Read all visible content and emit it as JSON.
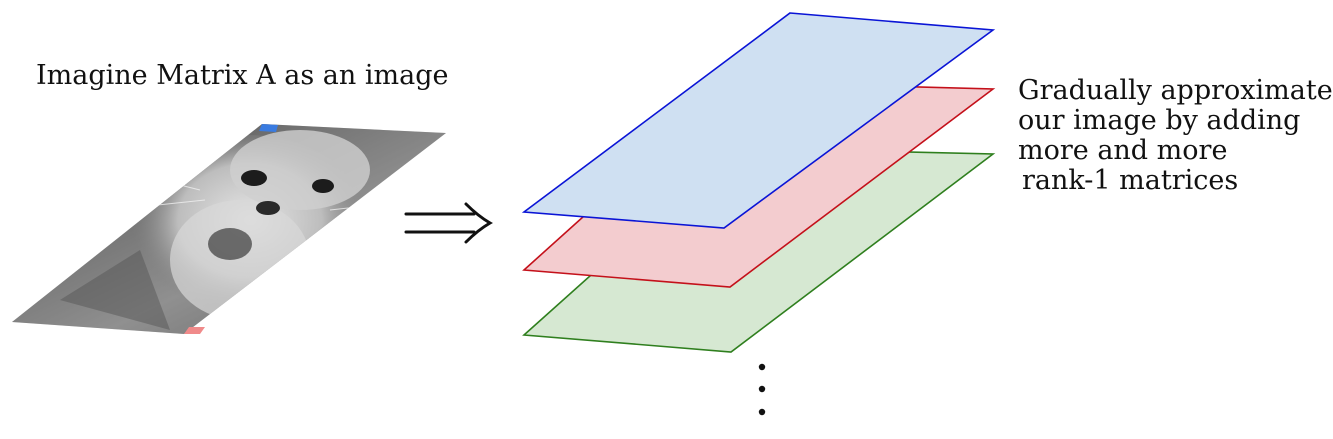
{
  "left_caption": "Imagine Matrix A as an image",
  "right_caption_lines": [
    "Gradually approximate",
    "our image by adding",
    "more and more",
    "rank-1 matrices"
  ],
  "image_subject": "cat-photo-grayscale",
  "arrow_symbol": "implies-arrow",
  "layers": [
    {
      "name": "layer-1",
      "fill": "#cfe0f2",
      "stroke": "#0a14d6"
    },
    {
      "name": "layer-2",
      "fill": "#f3cccf",
      "stroke": "#c4101a"
    },
    {
      "name": "layer-3",
      "fill": "#d6e8d2",
      "stroke": "#2f7f1e"
    }
  ],
  "marker_colors": {
    "top": "#3a7be0",
    "bottom": "#f08a8a"
  },
  "continuation_symbol": "vertical-ellipsis"
}
